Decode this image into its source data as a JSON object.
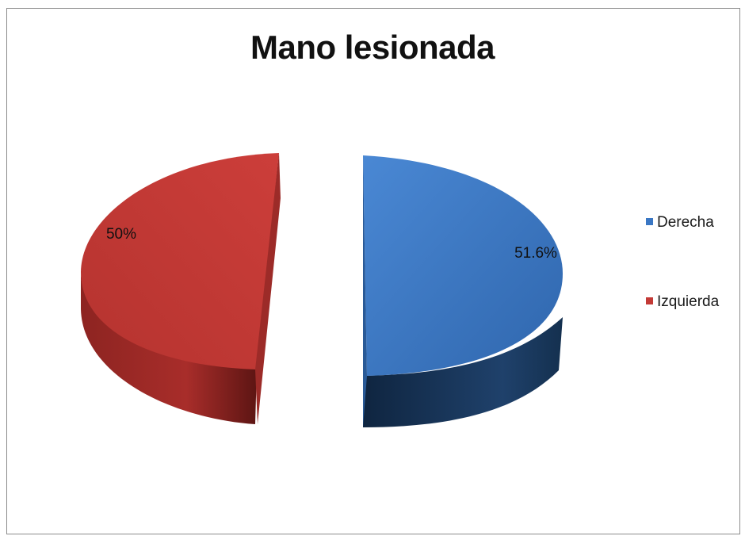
{
  "chart_data": {
    "type": "pie",
    "title": "Mano lesionada",
    "slices": [
      {
        "label": "Derecha",
        "value": 51.6,
        "data_label": "51.6%",
        "color": "#3A77C4",
        "side_color": "#1B3A63"
      },
      {
        "label": "Izquierda",
        "value": 50,
        "data_label": "50%",
        "color": "#C33A36",
        "side_color": "#7E1F1C"
      }
    ],
    "style": "3d-exploded",
    "legend_position": "right"
  }
}
